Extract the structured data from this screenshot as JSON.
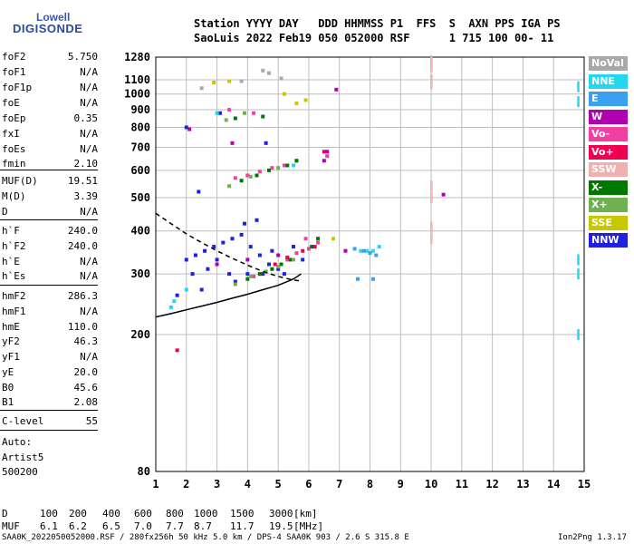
{
  "logo": {
    "line1": "Lowell",
    "line2": "DIGISONDE"
  },
  "header": {
    "line1": "Station YYYY DAY   DDD HHMMSS P1  FFS  S  AXN PPS IGA PS",
    "line2": "SaoLuis 2022 Feb19 050 052000 RSF      1 715 100 00- 11"
  },
  "params": [
    {
      "name": "foF2",
      "value": "5.750"
    },
    {
      "name": "foF1",
      "value": "N/A"
    },
    {
      "name": "foF1p",
      "value": "N/A"
    },
    {
      "name": "foE",
      "value": "N/A"
    },
    {
      "name": "foEp",
      "value": "0.35"
    },
    {
      "name": "fxI",
      "value": "N/A"
    },
    {
      "name": "foEs",
      "value": "N/A"
    },
    {
      "name": "fmin",
      "value": "2.10"
    },
    {
      "name": "MUF(D)",
      "value": "19.51"
    },
    {
      "name": "M(D)",
      "value": "3.39"
    },
    {
      "name": "D",
      "value": "N/A"
    },
    {
      "name": "h`F",
      "value": "240.0"
    },
    {
      "name": "h`F2",
      "value": "240.0"
    },
    {
      "name": "h`E",
      "value": "N/A"
    },
    {
      "name": "h`Es",
      "value": "N/A"
    },
    {
      "name": "hmF2",
      "value": "286.3"
    },
    {
      "name": "hmF1",
      "value": "N/A"
    },
    {
      "name": "hmE",
      "value": "110.0"
    },
    {
      "name": "yF2",
      "value": "46.3"
    },
    {
      "name": "yF1",
      "value": "N/A"
    },
    {
      "name": "yE",
      "value": "20.0"
    },
    {
      "name": "B0",
      "value": "45.6"
    },
    {
      "name": "B1",
      "value": "2.08"
    },
    {
      "name": "C-level",
      "value": "55"
    }
  ],
  "auto": {
    "line1": "Auto:",
    "line2": "Artist5",
    "line3": "500200"
  },
  "legend": [
    {
      "label": "NoVal",
      "color": "#a8a8a8"
    },
    {
      "label": "NNE",
      "color": "#22d8f0"
    },
    {
      "label": "E",
      "color": "#3aa0f0"
    },
    {
      "label": "W",
      "color": "#b000b0"
    },
    {
      "label": "Vo-",
      "color": "#f040a0"
    },
    {
      "label": "Vo+",
      "color": "#f00050"
    },
    {
      "label": "SSW",
      "color": "#f0b0b0"
    },
    {
      "label": "X-",
      "color": "#007800"
    },
    {
      "label": "X+",
      "color": "#70b050"
    },
    {
      "label": "SSE",
      "color": "#c8c800"
    },
    {
      "label": "NNW",
      "color": "#2020e0"
    }
  ],
  "chart_data": {
    "type": "scatter",
    "title": "",
    "xlabel": "",
    "ylabel": "",
    "xlim": [
      1,
      15
    ],
    "ylim": [
      80,
      1280
    ],
    "x_ticks": [
      1,
      2,
      3,
      4,
      5,
      6,
      7,
      8,
      9,
      10,
      11,
      12,
      13,
      14,
      15
    ],
    "y_ticks": [
      80,
      200,
      300,
      400,
      500,
      600,
      700,
      800,
      900,
      1000,
      1100,
      1280
    ],
    "y_scale": "log",
    "grid": true,
    "series": [
      {
        "name": "NNW",
        "color": "#2020e0",
        "points": [
          [
            2.0,
            330
          ],
          [
            2.3,
            340
          ],
          [
            2.6,
            350
          ],
          [
            2.9,
            360
          ],
          [
            3.2,
            370
          ],
          [
            3.5,
            380
          ],
          [
            3.8,
            390
          ],
          [
            4.1,
            360
          ],
          [
            4.4,
            340
          ],
          [
            4.7,
            320
          ],
          [
            5.0,
            310
          ],
          [
            2.2,
            300
          ],
          [
            2.7,
            310
          ],
          [
            3.0,
            330
          ],
          [
            3.4,
            300
          ],
          [
            4.0,
            300
          ],
          [
            4.5,
            300
          ],
          [
            5.2,
            300
          ],
          [
            1.7,
            260
          ],
          [
            2.5,
            270
          ],
          [
            3.6,
            285
          ],
          [
            4.8,
            350
          ],
          [
            5.5,
            360
          ],
          [
            3.9,
            420
          ],
          [
            4.3,
            430
          ],
          [
            2.4,
            520
          ],
          [
            4.0,
            580
          ],
          [
            3.1,
            880
          ],
          [
            4.6,
            720
          ],
          [
            2.0,
            800
          ],
          [
            6.1,
            360
          ],
          [
            5.8,
            330
          ]
        ]
      },
      {
        "name": "NNE",
        "color": "#22d8f0",
        "points": [
          [
            1.5,
            240
          ],
          [
            1.6,
            250
          ],
          [
            2.0,
            270
          ],
          [
            7.7,
            350
          ],
          [
            7.9,
            350
          ],
          [
            8.1,
            350
          ],
          [
            8.3,
            360
          ],
          [
            3.0,
            880
          ],
          [
            5.5,
            620
          ],
          [
            14.8,
            330
          ],
          [
            14.8,
            300
          ],
          [
            14.8,
            1050
          ],
          [
            14.8,
            950
          ],
          [
            14.8,
            200
          ]
        ]
      },
      {
        "name": "E",
        "color": "#3aa0f0",
        "points": [
          [
            7.5,
            355
          ],
          [
            7.8,
            350
          ],
          [
            8.0,
            345
          ],
          [
            8.2,
            340
          ],
          [
            7.6,
            290
          ],
          [
            8.1,
            290
          ]
        ]
      },
      {
        "name": "W",
        "color": "#b000b0",
        "points": [
          [
            3.0,
            320
          ],
          [
            4.0,
            330
          ],
          [
            5.0,
            340
          ],
          [
            6.6,
            680
          ],
          [
            6.5,
            640
          ],
          [
            2.1,
            790
          ],
          [
            3.5,
            720
          ],
          [
            6.9,
            1030
          ],
          [
            10.4,
            510
          ],
          [
            7.2,
            350
          ]
        ]
      },
      {
        "name": "Vo-",
        "color": "#f040a0",
        "points": [
          [
            4.2,
            295
          ],
          [
            4.6,
            305
          ],
          [
            5.0,
            315
          ],
          [
            5.3,
            330
          ],
          [
            5.6,
            345
          ],
          [
            6.0,
            355
          ],
          [
            6.3,
            370
          ],
          [
            3.6,
            570
          ],
          [
            4.0,
            580
          ],
          [
            4.4,
            595
          ],
          [
            4.8,
            610
          ],
          [
            5.2,
            620
          ],
          [
            5.6,
            640
          ],
          [
            3.4,
            900
          ],
          [
            4.2,
            880
          ],
          [
            6.6,
            660
          ],
          [
            5.9,
            380
          ]
        ]
      },
      {
        "name": "Vo+",
        "color": "#f00050",
        "points": [
          [
            4.4,
            300
          ],
          [
            4.9,
            320
          ],
          [
            5.3,
            335
          ],
          [
            5.8,
            350
          ],
          [
            6.2,
            360
          ],
          [
            6.5,
            680
          ],
          [
            1.7,
            180
          ]
        ]
      },
      {
        "name": "SSW",
        "color": "#f0b0b0",
        "points": [
          [
            10.0,
            1250
          ],
          [
            10.0,
            1200
          ],
          [
            10.0,
            1100
          ],
          [
            10.0,
            1070
          ],
          [
            10.0,
            540
          ],
          [
            10.0,
            500
          ],
          [
            10.0,
            410
          ],
          [
            10.0,
            380
          ]
        ]
      },
      {
        "name": "X-",
        "color": "#007800",
        "points": [
          [
            4.0,
            290
          ],
          [
            4.4,
            300
          ],
          [
            4.8,
            310
          ],
          [
            5.1,
            320
          ],
          [
            5.4,
            330
          ],
          [
            6.1,
            360
          ],
          [
            6.3,
            380
          ],
          [
            3.8,
            560
          ],
          [
            4.3,
            580
          ],
          [
            4.7,
            600
          ],
          [
            5.3,
            620
          ],
          [
            5.6,
            640
          ],
          [
            3.6,
            850
          ],
          [
            4.5,
            860
          ]
        ]
      },
      {
        "name": "X+",
        "color": "#70b050",
        "points": [
          [
            3.6,
            280
          ],
          [
            4.1,
            295
          ],
          [
            4.6,
            305
          ],
          [
            5.0,
            315
          ],
          [
            5.5,
            330
          ],
          [
            3.4,
            540
          ],
          [
            4.1,
            575
          ],
          [
            5.0,
            610
          ],
          [
            3.9,
            880
          ],
          [
            3.3,
            840
          ]
        ]
      },
      {
        "name": "SSE",
        "color": "#c8c800",
        "points": [
          [
            5.6,
            940
          ],
          [
            5.9,
            960
          ],
          [
            6.8,
            380
          ],
          [
            3.4,
            1090
          ],
          [
            2.9,
            1080
          ],
          [
            5.2,
            1000
          ]
        ]
      },
      {
        "name": "NoVal",
        "color": "#a8a8a8",
        "points": [
          [
            4.5,
            1170
          ],
          [
            4.7,
            1150
          ],
          [
            3.8,
            1090
          ],
          [
            5.1,
            1110
          ],
          [
            2.5,
            1040
          ]
        ]
      }
    ],
    "fit_curves": [
      {
        "name": "profile",
        "style": "solid",
        "color": "#000000",
        "points": [
          [
            1.0,
            225
          ],
          [
            1.5,
            230
          ],
          [
            2.0,
            236
          ],
          [
            2.5,
            242
          ],
          [
            3.0,
            248
          ],
          [
            3.5,
            255
          ],
          [
            4.0,
            262
          ],
          [
            4.5,
            270
          ],
          [
            5.0,
            278
          ],
          [
            5.5,
            290
          ],
          [
            5.75,
            300
          ]
        ]
      },
      {
        "name": "profile-upper",
        "style": "dashed",
        "color": "#000000",
        "points": [
          [
            1.0,
            450
          ],
          [
            1.5,
            420
          ],
          [
            2.0,
            392
          ],
          [
            2.5,
            370
          ],
          [
            3.0,
            350
          ],
          [
            3.5,
            333
          ],
          [
            4.0,
            318
          ],
          [
            4.5,
            305
          ],
          [
            5.0,
            295
          ],
          [
            5.5,
            288
          ],
          [
            5.75,
            286
          ]
        ]
      }
    ]
  },
  "footer": {
    "d_label": "D",
    "d_values": [
      "100",
      "200",
      "400",
      "600",
      "800",
      "1000",
      "1500",
      "3000",
      "[km]"
    ],
    "muf_label": "MUF",
    "muf_values": [
      "6.1",
      "6.2",
      "6.5",
      "7.0",
      "7.7",
      "8.7",
      "11.7",
      "19.5",
      "[MHz]"
    ],
    "info": "SAA0K_2022050052000.RSF / 280fx256h 50 kHz 5.0 km / DPS-4 SAA0K 903 / 2.6 S 315.8 E",
    "version": "Ion2Png 1.3.17"
  }
}
